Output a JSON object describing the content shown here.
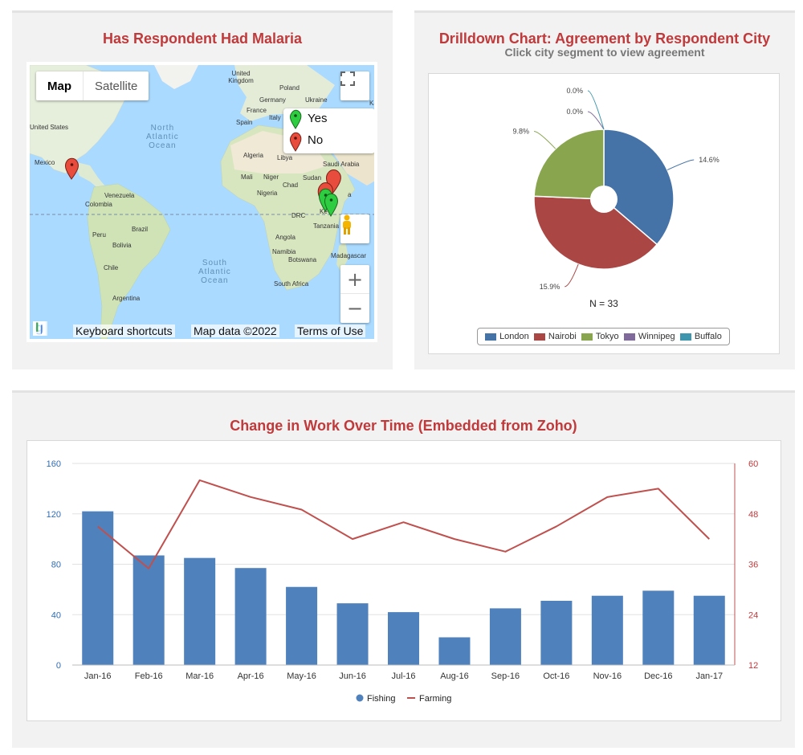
{
  "map_panel": {
    "title": "Has Respondent Had Malaria",
    "map_type": {
      "map": "Map",
      "satellite": "Satellite"
    },
    "legend": [
      {
        "label": "Yes",
        "color": "#2ecc40"
      },
      {
        "label": "No",
        "color": "#e74c3c"
      }
    ],
    "footer": {
      "google": "Google",
      "shortcuts": "Keyboard shortcuts",
      "mapdata": "Map data ©2022",
      "terms": "Terms of Use"
    },
    "zoom_in": "+",
    "zoom_out": "−",
    "place_labels": {
      "united_kingdom": "United Kingdom",
      "poland": "Poland",
      "germany": "Germany",
      "ukraine": "Ukraine",
      "france": "France",
      "spain": "Spain",
      "italy": "Italy",
      "united_states": "United States",
      "algeria": "Algeria",
      "libya": "Libya",
      "saudi_arabia": "Saudi Arabia",
      "mexico": "Mexico",
      "mali": "Mali",
      "niger": "Niger",
      "sudan": "Sudan",
      "chad": "Chad",
      "nigeria": "Nigeria",
      "venezuela": "Venezuela",
      "colombia": "Colombia",
      "drc": "DRC",
      "kenya": "Ke",
      "tanzania": "Tanzania",
      "peru": "Peru",
      "brazil": "Brazil",
      "bolivia": "Bolivia",
      "angola": "Angola",
      "namibia": "Namibia",
      "botswana": "Botswana",
      "madagascar": "Madagascar",
      "chile": "Chile",
      "south_africa": "South Africa",
      "argentina": "Argentina",
      "k_edge": "Ka",
      "a_ethiopia": "a"
    },
    "ocean_labels": {
      "north_atlantic": "North\nAtlantic\nOcean",
      "south_atlantic": "South\nAtlantic\nOcean"
    }
  },
  "pie_panel": {
    "title": "Drilldown Chart: Agreement by Respondent City",
    "subtitle": "Click city segment to view agreement",
    "n_label": "N = 33"
  },
  "line_panel": {
    "title": "Change in Work Over Time (Embedded from Zoho)"
  },
  "chart_data": [
    {
      "type": "pie",
      "categories": [
        "London",
        "Nairobi",
        "Tokyo",
        "Winnipeg",
        "Buffalo"
      ],
      "values": [
        14.6,
        15.9,
        9.8,
        0.0,
        0.0
      ],
      "value_labels": [
        "14.6%",
        "15.9%",
        "9.8%",
        "0.0%",
        "0.0%"
      ],
      "colors": [
        "#4572a7",
        "#aa4643",
        "#89a54e",
        "#80699b",
        "#3d96ae"
      ],
      "legend_position": "bottom",
      "donut": true
    },
    {
      "type": "bar",
      "categories": [
        "Jan-16",
        "Feb-16",
        "Mar-16",
        "Apr-16",
        "May-16",
        "Jun-16",
        "Jul-16",
        "Aug-16",
        "Sep-16",
        "Oct-16",
        "Nov-16",
        "Dec-16",
        "Jan-17"
      ],
      "series": [
        {
          "name": "Fishing",
          "type": "bar",
          "axis": "left",
          "color": "#4f81bd",
          "values": [
            122,
            87,
            85,
            77,
            62,
            49,
            42,
            22,
            45,
            51,
            55,
            59,
            55
          ]
        },
        {
          "name": "Farming",
          "type": "line",
          "axis": "right",
          "color": "#c0504d",
          "values": [
            45,
            35,
            56,
            52,
            49,
            42,
            46,
            42,
            39,
            45,
            52,
            54,
            42
          ]
        }
      ],
      "y_left": {
        "ticks": [
          0,
          40,
          80,
          120,
          160
        ],
        "ylim": [
          0,
          160
        ]
      },
      "y_right": {
        "ticks": [
          12,
          24,
          36,
          48,
          60
        ],
        "ylim": [
          12,
          60
        ]
      },
      "grid": true,
      "legend_position": "bottom"
    }
  ]
}
